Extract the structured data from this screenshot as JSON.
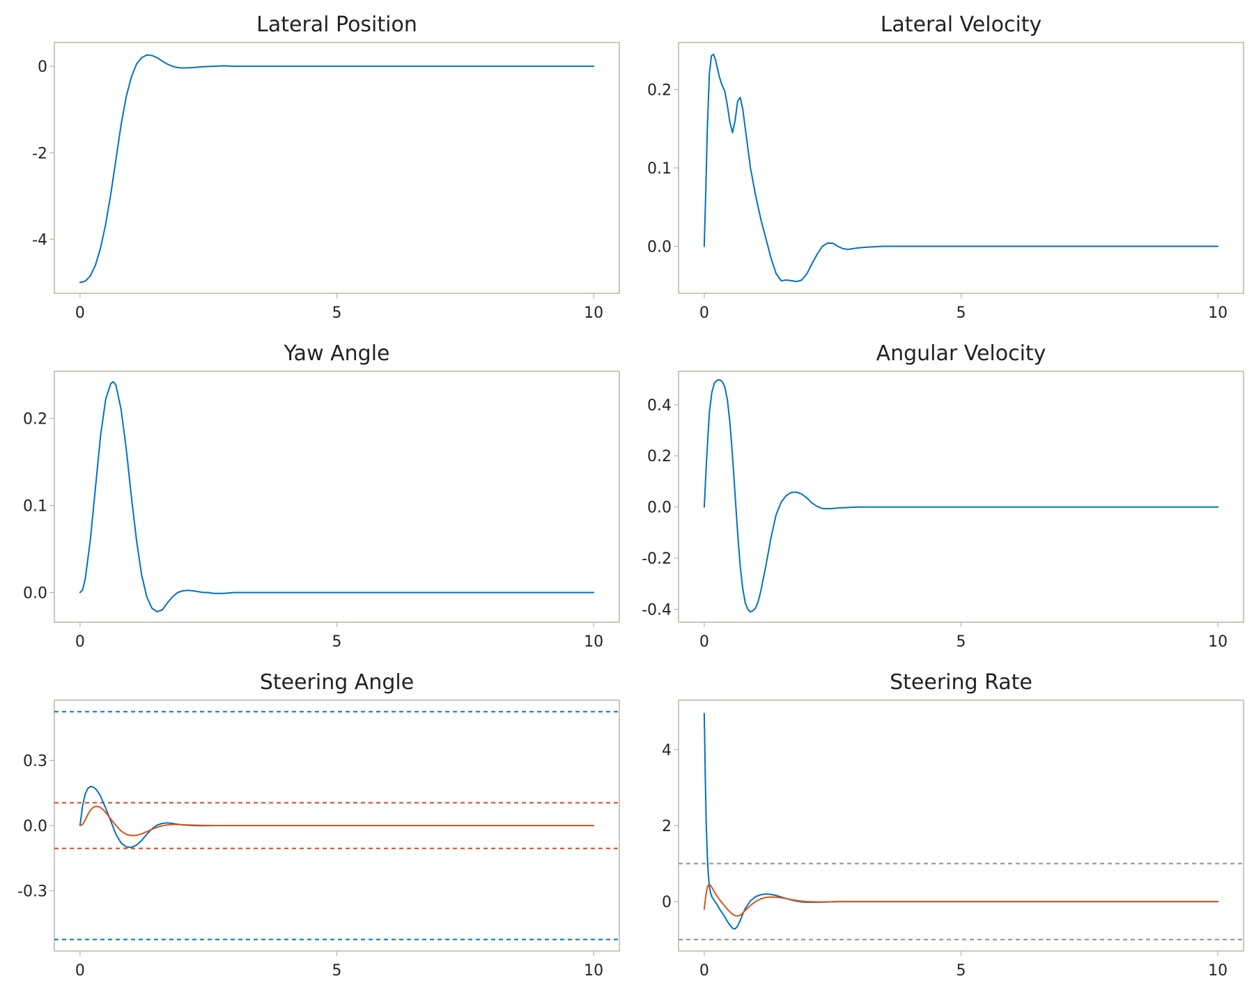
{
  "chart_data": [
    {
      "type": "line",
      "title": "Lateral Position",
      "xlabel": "",
      "ylabel": "",
      "xlim": [
        -0.5,
        10.5
      ],
      "ylim": [
        -5.25,
        0.55
      ],
      "xticks": [
        0,
        5,
        10
      ],
      "xtick_labels": [
        "0",
        "5",
        "10"
      ],
      "yticks": [
        -4,
        -2,
        0
      ],
      "ytick_labels": [
        "-4",
        "-2",
        "0"
      ],
      "grid": false,
      "series": [
        {
          "color": "#0072bd",
          "x": [
            0,
            0.1,
            0.2,
            0.3,
            0.4,
            0.5,
            0.6,
            0.7,
            0.8,
            0.9,
            1.0,
            1.1,
            1.2,
            1.3,
            1.4,
            1.5,
            1.6,
            1.7,
            1.8,
            1.9,
            2.0,
            2.2,
            2.4,
            2.6,
            2.8,
            3.0,
            3.5,
            4,
            5,
            6,
            7,
            8,
            9,
            10
          ],
          "y": [
            -5.0,
            -4.97,
            -4.85,
            -4.6,
            -4.2,
            -3.65,
            -2.95,
            -2.15,
            -1.35,
            -0.7,
            -0.25,
            0.05,
            0.2,
            0.26,
            0.25,
            0.2,
            0.12,
            0.05,
            0.0,
            -0.03,
            -0.04,
            -0.03,
            -0.01,
            0.0,
            0.01,
            0.0,
            0.0,
            0.0,
            0.0,
            0.0,
            0.0,
            0.0,
            0.0,
            0.0
          ]
        }
      ]
    },
    {
      "type": "line",
      "title": "Lateral Velocity",
      "xlabel": "",
      "ylabel": "",
      "xlim": [
        -0.5,
        10.5
      ],
      "ylim": [
        -0.06,
        0.26
      ],
      "xticks": [
        0,
        5,
        10
      ],
      "xtick_labels": [
        "0",
        "5",
        "10"
      ],
      "yticks": [
        0.0,
        0.1,
        0.2
      ],
      "ytick_labels": [
        "0.0",
        "0.1",
        "0.2"
      ],
      "grid": false,
      "series": [
        {
          "color": "#0072bd",
          "x": [
            0,
            0.03,
            0.06,
            0.1,
            0.14,
            0.18,
            0.22,
            0.26,
            0.3,
            0.35,
            0.4,
            0.45,
            0.5,
            0.55,
            0.6,
            0.65,
            0.7,
            0.75,
            0.8,
            0.85,
            0.9,
            1.0,
            1.1,
            1.2,
            1.3,
            1.4,
            1.5,
            1.6,
            1.7,
            1.8,
            1.9,
            2.0,
            2.1,
            2.2,
            2.3,
            2.4,
            2.5,
            2.6,
            2.7,
            2.8,
            3.0,
            3.2,
            3.5,
            4,
            5,
            6,
            7,
            8,
            9,
            10
          ],
          "y": [
            0.0,
            0.07,
            0.15,
            0.22,
            0.243,
            0.245,
            0.238,
            0.226,
            0.215,
            0.205,
            0.198,
            0.18,
            0.158,
            0.145,
            0.16,
            0.185,
            0.19,
            0.175,
            0.15,
            0.125,
            0.1,
            0.065,
            0.035,
            0.01,
            -0.015,
            -0.035,
            -0.044,
            -0.043,
            -0.044,
            -0.045,
            -0.043,
            -0.035,
            -0.022,
            -0.01,
            0.0,
            0.004,
            0.004,
            0.0,
            -0.003,
            -0.004,
            -0.002,
            -0.001,
            0.0,
            0.0,
            0.0,
            0.0,
            0.0,
            0.0,
            0.0,
            0.0
          ]
        }
      ]
    },
    {
      "type": "line",
      "title": "Yaw Angle",
      "xlabel": "",
      "ylabel": "",
      "xlim": [
        -0.5,
        10.5
      ],
      "ylim": [
        -0.034,
        0.254
      ],
      "xticks": [
        0,
        5,
        10
      ],
      "xtick_labels": [
        "0",
        "5",
        "10"
      ],
      "yticks": [
        0.0,
        0.1,
        0.2
      ],
      "ytick_labels": [
        "0.0",
        "0.1",
        "0.2"
      ],
      "grid": false,
      "series": [
        {
          "color": "#0072bd",
          "x": [
            0,
            0.05,
            0.1,
            0.2,
            0.3,
            0.4,
            0.5,
            0.6,
            0.65,
            0.7,
            0.8,
            0.9,
            1.0,
            1.1,
            1.2,
            1.3,
            1.4,
            1.5,
            1.6,
            1.7,
            1.8,
            1.9,
            2.0,
            2.1,
            2.2,
            2.3,
            2.4,
            2.5,
            2.6,
            2.8,
            3.0,
            3.5,
            4,
            5,
            6,
            7,
            8,
            9,
            10
          ],
          "y": [
            0.0,
            0.003,
            0.015,
            0.06,
            0.12,
            0.18,
            0.222,
            0.24,
            0.242,
            0.238,
            0.21,
            0.165,
            0.11,
            0.06,
            0.02,
            -0.005,
            -0.018,
            -0.022,
            -0.02,
            -0.012,
            -0.005,
            0.0,
            0.002,
            0.0025,
            0.002,
            0.001,
            0.0,
            0.0,
            -0.001,
            -0.001,
            0.0,
            0.0,
            0.0,
            0.0,
            0.0,
            0.0,
            0.0,
            0.0,
            0.0
          ]
        }
      ]
    },
    {
      "type": "line",
      "title": "Angular Velocity",
      "xlabel": "",
      "ylabel": "",
      "xlim": [
        -0.5,
        10.5
      ],
      "ylim": [
        -0.45,
        0.53
      ],
      "xticks": [
        0,
        5,
        10
      ],
      "xtick_labels": [
        "0",
        "5",
        "10"
      ],
      "yticks": [
        -0.4,
        -0.2,
        0.0,
        0.2,
        0.4
      ],
      "ytick_labels": [
        "-0.4",
        "-0.2",
        "0.0",
        "0.2",
        "0.4"
      ],
      "grid": false,
      "series": [
        {
          "color": "#0072bd",
          "x": [
            0,
            0.05,
            0.1,
            0.15,
            0.2,
            0.25,
            0.3,
            0.35,
            0.4,
            0.45,
            0.5,
            0.55,
            0.6,
            0.65,
            0.7,
            0.75,
            0.8,
            0.85,
            0.9,
            0.95,
            1.0,
            1.05,
            1.1,
            1.2,
            1.3,
            1.4,
            1.5,
            1.6,
            1.7,
            1.8,
            1.9,
            2.0,
            2.1,
            2.2,
            2.3,
            2.4,
            2.5,
            2.6,
            2.8,
            3.0,
            3.5,
            4,
            5,
            6,
            7,
            8,
            9,
            10
          ],
          "y": [
            0.0,
            0.2,
            0.37,
            0.45,
            0.485,
            0.495,
            0.497,
            0.49,
            0.47,
            0.42,
            0.33,
            0.2,
            0.05,
            -0.1,
            -0.23,
            -0.32,
            -0.375,
            -0.4,
            -0.41,
            -0.405,
            -0.395,
            -0.37,
            -0.33,
            -0.23,
            -0.12,
            -0.03,
            0.02,
            0.045,
            0.057,
            0.058,
            0.05,
            0.035,
            0.015,
            0.002,
            -0.006,
            -0.007,
            -0.006,
            -0.004,
            -0.002,
            0.0,
            0.0,
            0.0,
            0.0,
            0.0,
            0.0,
            0.0,
            0.0,
            0.0
          ]
        }
      ]
    },
    {
      "type": "line",
      "title": "Steering Angle",
      "xlabel": "",
      "ylabel": "",
      "xlim": [
        -0.5,
        10.5
      ],
      "ylim": [
        -0.577,
        0.577
      ],
      "xticks": [
        0,
        5,
        10
      ],
      "xtick_labels": [
        "0",
        "5",
        "10"
      ],
      "yticks": [
        -0.3,
        0.0,
        0.3
      ],
      "ytick_labels": [
        "-0.3",
        "0.0",
        "0.3"
      ],
      "grid": false,
      "reference_lines": [
        {
          "y": 0.524,
          "color": "#0072bd",
          "style": "dashed"
        },
        {
          "y": -0.524,
          "color": "#0072bd",
          "style": "dashed"
        },
        {
          "y": 0.105,
          "color": "#e8411a",
          "style": "dashed"
        },
        {
          "y": -0.105,
          "color": "#e8411a",
          "style": "dashed"
        }
      ],
      "series": [
        {
          "color": "#0072bd",
          "x": [
            0,
            0.05,
            0.1,
            0.15,
            0.2,
            0.25,
            0.3,
            0.35,
            0.4,
            0.5,
            0.6,
            0.7,
            0.8,
            0.9,
            1.0,
            1.1,
            1.2,
            1.3,
            1.4,
            1.5,
            1.6,
            1.7,
            1.8,
            1.9,
            2.0,
            2.2,
            2.4,
            2.6,
            3.0,
            3.5,
            4,
            5,
            6,
            7,
            8,
            9,
            10
          ],
          "y": [
            0.0,
            0.09,
            0.145,
            0.17,
            0.18,
            0.178,
            0.17,
            0.155,
            0.135,
            0.08,
            0.02,
            -0.04,
            -0.08,
            -0.098,
            -0.1,
            -0.09,
            -0.068,
            -0.04,
            -0.015,
            0.002,
            0.01,
            0.012,
            0.01,
            0.006,
            0.003,
            0.0,
            -0.001,
            0.0,
            0.0,
            0.0,
            0.0,
            0.0,
            0.0,
            0.0,
            0.0,
            0.0,
            0.0
          ]
        },
        {
          "color": "#d95319",
          "x": [
            0,
            0.05,
            0.1,
            0.15,
            0.2,
            0.25,
            0.3,
            0.35,
            0.4,
            0.45,
            0.5,
            0.6,
            0.7,
            0.8,
            0.9,
            1.0,
            1.1,
            1.2,
            1.3,
            1.4,
            1.5,
            1.6,
            1.7,
            1.8,
            1.9,
            2.0,
            2.2,
            2.4,
            2.6,
            3.0,
            3.5,
            4,
            5,
            6,
            7,
            8,
            9,
            10
          ],
          "y": [
            0.0,
            0.005,
            0.025,
            0.05,
            0.07,
            0.082,
            0.088,
            0.088,
            0.083,
            0.073,
            0.06,
            0.03,
            0.0,
            -0.025,
            -0.04,
            -0.046,
            -0.045,
            -0.038,
            -0.028,
            -0.017,
            -0.008,
            -0.001,
            0.003,
            0.005,
            0.005,
            0.004,
            0.002,
            0.001,
            0.0,
            0.0,
            0.0,
            0.0,
            0.0,
            0.0,
            0.0,
            0.0,
            0.0,
            0.0
          ]
        }
      ]
    },
    {
      "type": "line",
      "title": "Steering Rate",
      "xlabel": "",
      "ylabel": "",
      "xlim": [
        -0.5,
        10.5
      ],
      "ylim": [
        -1.3,
        5.3
      ],
      "xticks": [
        0,
        5,
        10
      ],
      "xtick_labels": [
        "0",
        "5",
        "10"
      ],
      "yticks": [
        0,
        2,
        4
      ],
      "ytick_labels": [
        "0",
        "2",
        "4"
      ],
      "grid": false,
      "reference_lines": [
        {
          "y": 1.0,
          "color": "#8f8f8f",
          "style": "dashed"
        },
        {
          "y": -1.0,
          "color": "#8f8f8f",
          "style": "dashed"
        }
      ],
      "series": [
        {
          "color": "#0072bd",
          "x": [
            0,
            0.01,
            0.02,
            0.04,
            0.06,
            0.08,
            0.1,
            0.12,
            0.15,
            0.2,
            0.25,
            0.3,
            0.35,
            0.4,
            0.45,
            0.5,
            0.55,
            0.6,
            0.65,
            0.7,
            0.75,
            0.8,
            0.9,
            1.0,
            1.1,
            1.2,
            1.3,
            1.4,
            1.5,
            1.6,
            1.7,
            1.8,
            1.9,
            2.0,
            2.2,
            2.4,
            2.6,
            3.0,
            3.5,
            4,
            5,
            6,
            7,
            8,
            9,
            10
          ],
          "y": [
            4.95,
            4.2,
            3.3,
            2.0,
            1.2,
            0.7,
            0.4,
            0.25,
            0.12,
            0.02,
            -0.08,
            -0.2,
            -0.3,
            -0.4,
            -0.52,
            -0.62,
            -0.7,
            -0.72,
            -0.65,
            -0.5,
            -0.33,
            -0.18,
            0.02,
            0.13,
            0.18,
            0.2,
            0.19,
            0.16,
            0.12,
            0.08,
            0.04,
            0.01,
            -0.01,
            -0.02,
            -0.02,
            -0.01,
            0.0,
            0.0,
            0.0,
            0.0,
            0.0,
            0.0,
            0.0,
            0.0,
            0.0,
            0.0
          ]
        },
        {
          "color": "#d95319",
          "x": [
            0,
            0.03,
            0.06,
            0.09,
            0.12,
            0.15,
            0.2,
            0.25,
            0.3,
            0.35,
            0.4,
            0.45,
            0.5,
            0.55,
            0.6,
            0.65,
            0.7,
            0.75,
            0.8,
            0.9,
            1.0,
            1.1,
            1.2,
            1.3,
            1.4,
            1.5,
            1.6,
            1.7,
            1.8,
            1.9,
            2.0,
            2.2,
            2.4,
            2.6,
            3.0,
            3.5,
            4,
            5,
            6,
            7,
            8,
            9,
            10
          ],
          "y": [
            -0.2,
            0.15,
            0.38,
            0.45,
            0.43,
            0.37,
            0.25,
            0.14,
            0.05,
            -0.04,
            -0.12,
            -0.2,
            -0.27,
            -0.33,
            -0.37,
            -0.38,
            -0.36,
            -0.3,
            -0.23,
            -0.1,
            0.0,
            0.07,
            0.11,
            0.12,
            0.115,
            0.1,
            0.08,
            0.05,
            0.03,
            0.01,
            0.0,
            -0.01,
            -0.01,
            0.0,
            0.0,
            0.0,
            0.0,
            0.0,
            0.0,
            0.0,
            0.0,
            0.0,
            0.0
          ]
        }
      ]
    }
  ]
}
